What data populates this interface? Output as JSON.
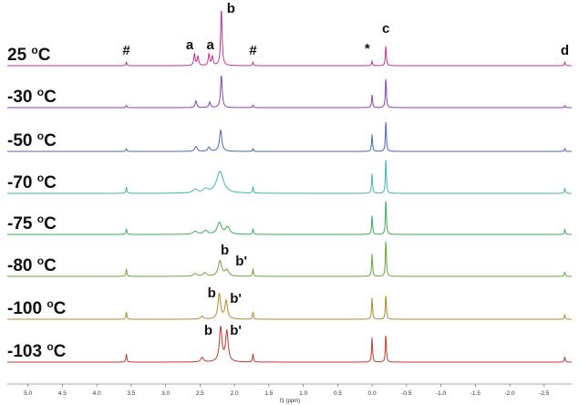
{
  "chart_data": {
    "type": "line",
    "xlabel": "f1 (ppm)",
    "xlim": [
      5.3,
      -2.9
    ],
    "x_reversed": true,
    "x_ticks": [
      "5.0",
      "4.5",
      "4.0",
      "3.5",
      "3.0",
      "2.5",
      "2.0",
      "1.5",
      "1.0",
      "0.5",
      "0.0",
      "-0.5",
      "-1.0",
      "-1.5",
      "-2.0",
      "-2.5"
    ],
    "legend": "none",
    "series": [
      {
        "name": "25 oC",
        "color": "#c0339a",
        "peaks": [
          {
            "ppm": 3.57,
            "intensity": 0.06
          },
          {
            "ppm": 2.58,
            "intensity": 0.2
          },
          {
            "ppm": 2.53,
            "intensity": 0.16
          },
          {
            "ppm": 2.37,
            "intensity": 0.2
          },
          {
            "ppm": 2.32,
            "intensity": 0.16
          },
          {
            "ppm": 2.19,
            "intensity": 1.0
          },
          {
            "ppm": 1.73,
            "intensity": 0.06
          },
          {
            "ppm": 0.0,
            "intensity": 0.08
          },
          {
            "ppm": -0.2,
            "intensity": 0.36
          },
          {
            "ppm": -2.8,
            "intensity": 0.06
          }
        ],
        "annotations": [
          {
            "label": "#",
            "ppm": 3.57
          },
          {
            "label": "a",
            "ppm": 2.65
          },
          {
            "label": "a",
            "ppm": 2.35
          },
          {
            "label": "b",
            "ppm": 2.05
          },
          {
            "label": "#",
            "ppm": 1.73
          },
          {
            "label": "*",
            "ppm": 0.07
          },
          {
            "label": "c",
            "ppm": -0.2
          },
          {
            "label": "d",
            "ppm": -2.8
          }
        ]
      },
      {
        "name": "-30 oC",
        "color": "#8a3fb0",
        "peaks": [
          {
            "ppm": 3.57,
            "intensity": 0.07
          },
          {
            "ppm": 2.56,
            "intensity": 0.2
          },
          {
            "ppm": 2.36,
            "intensity": 0.16
          },
          {
            "ppm": 2.19,
            "intensity": 0.95
          },
          {
            "ppm": 1.73,
            "intensity": 0.07
          },
          {
            "ppm": 0.0,
            "intensity": 0.38
          },
          {
            "ppm": -0.2,
            "intensity": 0.9
          },
          {
            "ppm": -2.8,
            "intensity": 0.06
          }
        ],
        "annotations": []
      },
      {
        "name": "-50 oC",
        "color": "#4a66b8",
        "peaks": [
          {
            "ppm": 3.57,
            "intensity": 0.08
          },
          {
            "ppm": 2.56,
            "intensity": 0.15
          },
          {
            "ppm": 2.37,
            "intensity": 0.12
          },
          {
            "ppm": 2.2,
            "intensity": 0.62
          },
          {
            "ppm": 1.73,
            "intensity": 0.08
          },
          {
            "ppm": 0.0,
            "intensity": 0.5
          },
          {
            "ppm": -0.2,
            "intensity": 0.92
          },
          {
            "ppm": -2.8,
            "intensity": 0.08
          }
        ],
        "annotations": []
      },
      {
        "name": "-70 oC",
        "color": "#3fb3ad",
        "peaks": [
          {
            "ppm": 3.57,
            "intensity": 0.18
          },
          {
            "ppm": 2.57,
            "intensity": 0.1
          },
          {
            "ppm": 2.42,
            "intensity": 0.1
          },
          {
            "ppm": 2.21,
            "intensity": 0.6
          },
          {
            "ppm": 1.73,
            "intensity": 0.18
          },
          {
            "ppm": 0.0,
            "intensity": 0.55
          },
          {
            "ppm": -0.2,
            "intensity": 1.0
          },
          {
            "ppm": -2.8,
            "intensity": 0.15
          }
        ],
        "annotations": []
      },
      {
        "name": "-75 oC",
        "color": "#42a85a",
        "peaks": [
          {
            "ppm": 3.57,
            "intensity": 0.16
          },
          {
            "ppm": 2.57,
            "intensity": 0.08
          },
          {
            "ppm": 2.42,
            "intensity": 0.1
          },
          {
            "ppm": 2.22,
            "intensity": 0.32
          },
          {
            "ppm": 2.1,
            "intensity": 0.2
          },
          {
            "ppm": 1.73,
            "intensity": 0.16
          },
          {
            "ppm": 0.0,
            "intensity": 0.52
          },
          {
            "ppm": -0.2,
            "intensity": 1.0
          },
          {
            "ppm": -2.8,
            "intensity": 0.15
          }
        ],
        "annotations": []
      },
      {
        "name": "-80 oC",
        "color": "#6aa33a",
        "peaks": [
          {
            "ppm": 3.57,
            "intensity": 0.2
          },
          {
            "ppm": 2.57,
            "intensity": 0.07
          },
          {
            "ppm": 2.43,
            "intensity": 0.09
          },
          {
            "ppm": 2.21,
            "intensity": 0.4
          },
          {
            "ppm": 2.11,
            "intensity": 0.16
          },
          {
            "ppm": 1.73,
            "intensity": 0.2
          },
          {
            "ppm": 0.0,
            "intensity": 0.6
          },
          {
            "ppm": -0.2,
            "intensity": 1.0
          },
          {
            "ppm": -2.8,
            "intensity": 0.12
          }
        ],
        "annotations": [
          {
            "label": "b",
            "ppm": 2.14
          },
          {
            "label": "b'",
            "ppm": 1.9
          }
        ]
      },
      {
        "name": "-100 oC",
        "color": "#b08a2a",
        "peaks": [
          {
            "ppm": 3.57,
            "intensity": 0.2
          },
          {
            "ppm": 2.47,
            "intensity": 0.08
          },
          {
            "ppm": 2.22,
            "intensity": 0.7
          },
          {
            "ppm": 2.12,
            "intensity": 0.5
          },
          {
            "ppm": 1.73,
            "intensity": 0.2
          },
          {
            "ppm": 0.0,
            "intensity": 0.6
          },
          {
            "ppm": -0.2,
            "intensity": 0.7
          },
          {
            "ppm": -2.8,
            "intensity": 0.12
          }
        ],
        "annotations": [
          {
            "label": "b",
            "ppm": 2.33
          },
          {
            "label": "b'",
            "ppm": 1.98
          }
        ]
      },
      {
        "name": "-103 oC",
        "color": "#c0392b",
        "peaks": [
          {
            "ppm": 3.57,
            "intensity": 0.22
          },
          {
            "ppm": 2.47,
            "intensity": 0.12
          },
          {
            "ppm": 2.2,
            "intensity": 0.9
          },
          {
            "ppm": 2.11,
            "intensity": 0.8
          },
          {
            "ppm": 1.73,
            "intensity": 0.22
          },
          {
            "ppm": 0.0,
            "intensity": 0.65
          },
          {
            "ppm": -0.2,
            "intensity": 0.75
          },
          {
            "ppm": -2.8,
            "intensity": 0.14
          }
        ],
        "annotations": [
          {
            "label": "b",
            "ppm": 2.38
          },
          {
            "label": "b'",
            "ppm": 1.98
          }
        ]
      }
    ]
  }
}
